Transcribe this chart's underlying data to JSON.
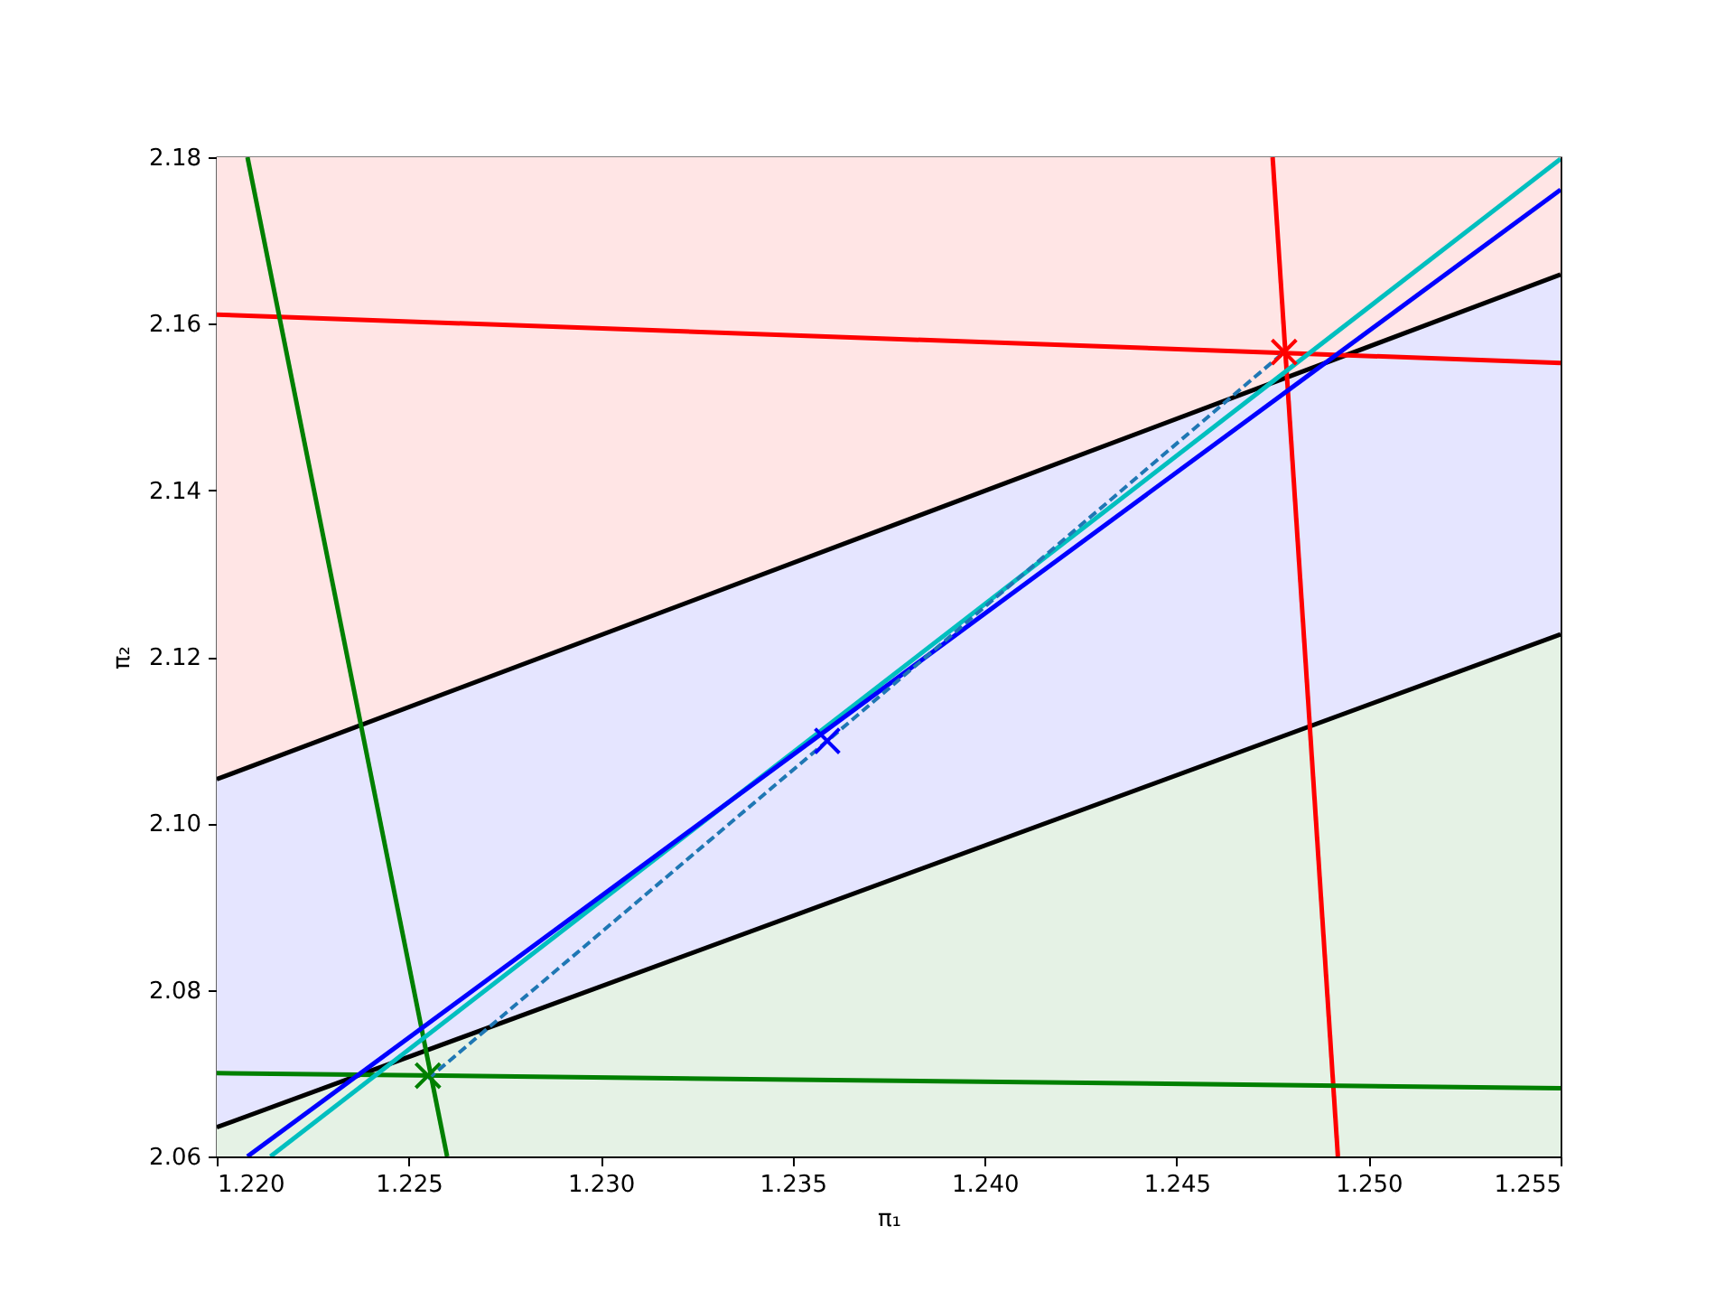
{
  "chart_data": {
    "type": "line",
    "xlabel": "π₁",
    "ylabel": "π₂",
    "xlim": [
      1.22,
      1.255
    ],
    "ylim": [
      2.06,
      2.18
    ],
    "xticks": [
      {
        "value": 1.22,
        "label": "1.220"
      },
      1.225,
      {
        "value": 1.23,
        "label": "1.230"
      },
      1.235,
      {
        "value": 1.24,
        "label": "1.240"
      },
      1.245,
      {
        "value": 1.25,
        "label": "1.250"
      },
      1.255
    ],
    "yticks": [
      2.06,
      2.08,
      {
        "value": 2.1,
        "label": "2.10"
      },
      2.12,
      2.14,
      2.16,
      2.18
    ],
    "grid": false,
    "series": [
      {
        "color": "#000000",
        "x": [
          1.22,
          1.255
        ],
        "values": [
          2.1053,
          2.1659
        ]
      },
      {
        "color": "#000000",
        "x": [
          1.22,
          1.255
        ],
        "values": [
          2.0635,
          2.1227
        ]
      },
      {
        "color": "#ff0000",
        "x": [
          1.22,
          1.255
        ],
        "values": [
          2.1611,
          2.1553
        ]
      },
      {
        "color": "#ff0000",
        "x": [
          1.2475,
          1.2492
        ],
        "values": [
          2.18,
          2.06
        ]
      },
      {
        "color": "#008000",
        "x": [
          1.2208,
          1.226
        ],
        "values": [
          2.18,
          2.06
        ]
      },
      {
        "color": "#008000",
        "x": [
          1.22,
          1.255
        ],
        "values": [
          2.07,
          2.0682
        ]
      },
      {
        "color": "#00bfbf",
        "x": [
          1.2214,
          1.255
        ],
        "values": [
          2.06,
          2.1798
        ]
      },
      {
        "color": "#0000ff",
        "x": [
          1.2208,
          1.255
        ],
        "values": [
          2.06,
          2.1761
        ]
      },
      {
        "color": "#1f77b4",
        "line_style": "dashed",
        "x": [
          1.2255,
          1.2359,
          1.2478
        ],
        "values": [
          2.0693,
          2.1099,
          2.1566
        ]
      },
      {
        "type": "scatter",
        "color": "#008000",
        "marker": "cross",
        "x": [
          1.2255
        ],
        "values": [
          2.0697
        ]
      },
      {
        "type": "scatter",
        "color": "#0000ff",
        "marker": "cross",
        "x": [
          1.2359
        ],
        "values": [
          2.1099
        ]
      },
      {
        "type": "scatter",
        "color": "#ff0000",
        "marker": "cross",
        "x": [
          1.2478
        ],
        "values": [
          2.1566
        ]
      },
      {
        "type": "area",
        "color": "#ffe5e5",
        "x": [
          1.22,
          1.255
        ],
        "values": [
          null,
          null
        ],
        "lower": [
          2.1053,
          2.1659
        ],
        "upper": [
          2.18,
          2.18
        ]
      },
      {
        "type": "area",
        "color": "#e5e5ff",
        "x": [
          1.22,
          1.255
        ],
        "values": [
          null,
          null
        ],
        "lower": [
          2.0635,
          2.1227
        ],
        "upper": [
          2.1053,
          2.1659
        ]
      },
      {
        "type": "area",
        "color": "#e5f2e5",
        "x": [
          1.22,
          1.255
        ],
        "values": [
          null,
          null
        ],
        "lower": [
          2.06,
          2.06
        ],
        "upper": [
          2.0635,
          2.1227
        ]
      }
    ]
  }
}
